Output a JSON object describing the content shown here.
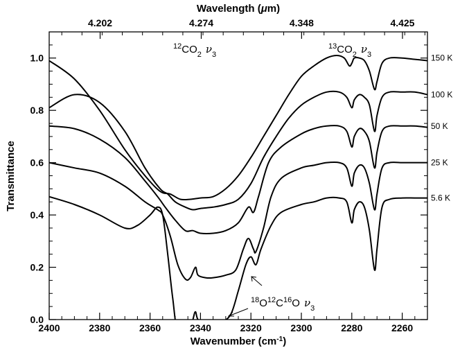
{
  "chart_data": {
    "type": "line",
    "xlabel_parts": [
      "Wavenumber (cm",
      "-1",
      ")"
    ],
    "ylabel": "Transmittance",
    "top_xlabel_parts": [
      "Wavelength (",
      "μ",
      "m)"
    ],
    "xlim": [
      2400,
      2250
    ],
    "ylim": [
      0.0,
      1.1
    ],
    "x_ticks": [
      2400,
      2380,
      2360,
      2340,
      2320,
      2300,
      2280,
      2260
    ],
    "y_ticks": [
      "0.0",
      "0.2",
      "0.4",
      "0.6",
      "0.8",
      "1.0"
    ],
    "top_ticks": [
      {
        "label": "4.202",
        "wavenumber": 2379.8
      },
      {
        "label": "4.274",
        "wavenumber": 2339.7
      },
      {
        "label": "4.348",
        "wavenumber": 2299.9
      },
      {
        "label": "4.425",
        "wavenumber": 2259.9
      }
    ],
    "annotations": {
      "co2_12": {
        "sup": "12",
        "base": "CO",
        "sub": "2",
        "nu": "ν",
        "nu_sub": "3"
      },
      "co2_13": {
        "sup": "13",
        "base": "CO",
        "sub": "2",
        "nu": "ν",
        "nu_sub": "3"
      },
      "iso_18": {
        "parts": [
          "18",
          "O",
          "12",
          "C",
          "16",
          "O"
        ],
        "nu": "ν",
        "nu_sub": "3"
      }
    },
    "series": [
      {
        "name": "150 K",
        "label_y": 1.0,
        "points": [
          [
            2400,
            0.99
          ],
          [
            2390,
            0.92
          ],
          [
            2380,
            0.8
          ],
          [
            2370,
            0.65
          ],
          [
            2362,
            0.55
          ],
          [
            2356,
            0.49
          ],
          [
            2352,
            0.48
          ],
          [
            2348,
            0.46
          ],
          [
            2344,
            0.46
          ],
          [
            2340,
            0.465
          ],
          [
            2335,
            0.47
          ],
          [
            2330,
            0.5
          ],
          [
            2325,
            0.55
          ],
          [
            2320,
            0.62
          ],
          [
            2315,
            0.7
          ],
          [
            2310,
            0.78
          ],
          [
            2305,
            0.86
          ],
          [
            2300,
            0.93
          ],
          [
            2295,
            0.97
          ],
          [
            2290,
            1.0
          ],
          [
            2286,
            1.01
          ],
          [
            2283,
            1.0
          ],
          [
            2281,
            0.97
          ],
          [
            2280,
            0.98
          ],
          [
            2279,
            1.0
          ],
          [
            2277,
            1.0
          ],
          [
            2275,
            0.99
          ],
          [
            2273,
            0.95
          ],
          [
            2271,
            0.88
          ],
          [
            2270,
            0.91
          ],
          [
            2268,
            0.98
          ],
          [
            2265,
            1.0
          ],
          [
            2260,
            1.0
          ],
          [
            2255,
            0.995
          ],
          [
            2250,
            0.99
          ]
        ]
      },
      {
        "name": "100 K",
        "label_y": 0.86,
        "points": [
          [
            2400,
            0.81
          ],
          [
            2390,
            0.86
          ],
          [
            2380,
            0.83
          ],
          [
            2370,
            0.72
          ],
          [
            2362,
            0.58
          ],
          [
            2356,
            0.5
          ],
          [
            2353,
            0.48
          ],
          [
            2350,
            0.45
          ],
          [
            2346,
            0.43
          ],
          [
            2343,
            0.42
          ],
          [
            2340,
            0.425
          ],
          [
            2335,
            0.43
          ],
          [
            2330,
            0.44
          ],
          [
            2325,
            0.46
          ],
          [
            2320,
            0.52
          ],
          [
            2315,
            0.62
          ],
          [
            2310,
            0.7
          ],
          [
            2305,
            0.77
          ],
          [
            2300,
            0.82
          ],
          [
            2295,
            0.85
          ],
          [
            2290,
            0.87
          ],
          [
            2285,
            0.87
          ],
          [
            2282,
            0.85
          ],
          [
            2280,
            0.81
          ],
          [
            2279,
            0.84
          ],
          [
            2277,
            0.86
          ],
          [
            2275,
            0.85
          ],
          [
            2273,
            0.82
          ],
          [
            2271,
            0.72
          ],
          [
            2270,
            0.78
          ],
          [
            2268,
            0.85
          ],
          [
            2265,
            0.87
          ],
          [
            2260,
            0.87
          ],
          [
            2255,
            0.87
          ],
          [
            2250,
            0.86
          ]
        ]
      },
      {
        "name": "50 K",
        "label_y": 0.74,
        "points": [
          [
            2400,
            0.74
          ],
          [
            2390,
            0.73
          ],
          [
            2380,
            0.69
          ],
          [
            2370,
            0.62
          ],
          [
            2362,
            0.53
          ],
          [
            2357,
            0.47
          ],
          [
            2354,
            0.43
          ],
          [
            2350,
            0.38
          ],
          [
            2346,
            0.34
          ],
          [
            2343,
            0.34
          ],
          [
            2340,
            0.33
          ],
          [
            2335,
            0.33
          ],
          [
            2330,
            0.34
          ],
          [
            2325,
            0.37
          ],
          [
            2321,
            0.43
          ],
          [
            2319,
            0.41
          ],
          [
            2317,
            0.47
          ],
          [
            2313,
            0.6
          ],
          [
            2308,
            0.66
          ],
          [
            2300,
            0.71
          ],
          [
            2295,
            0.73
          ],
          [
            2290,
            0.74
          ],
          [
            2285,
            0.74
          ],
          [
            2282,
            0.72
          ],
          [
            2280,
            0.66
          ],
          [
            2279,
            0.7
          ],
          [
            2277,
            0.73
          ],
          [
            2275,
            0.72
          ],
          [
            2273,
            0.68
          ],
          [
            2271,
            0.58
          ],
          [
            2270,
            0.64
          ],
          [
            2268,
            0.72
          ],
          [
            2265,
            0.74
          ],
          [
            2260,
            0.74
          ],
          [
            2255,
            0.74
          ],
          [
            2250,
            0.735
          ]
        ]
      },
      {
        "name": "25 K",
        "label_y": 0.6,
        "points": [
          [
            2400,
            0.6
          ],
          [
            2390,
            0.58
          ],
          [
            2380,
            0.56
          ],
          [
            2370,
            0.51
          ],
          [
            2362,
            0.45
          ],
          [
            2357,
            0.42
          ],
          [
            2355,
            0.4
          ],
          [
            2352,
            0.32
          ],
          [
            2349,
            0.21
          ],
          [
            2346,
            0.155
          ],
          [
            2344,
            0.16
          ],
          [
            2342,
            0.2
          ],
          [
            2341,
            0.17
          ],
          [
            2338,
            0.16
          ],
          [
            2335,
            0.16
          ],
          [
            2330,
            0.17
          ],
          [
            2326,
            0.19
          ],
          [
            2323,
            0.27
          ],
          [
            2321,
            0.31
          ],
          [
            2319,
            0.27
          ],
          [
            2318,
            0.26
          ],
          [
            2315,
            0.35
          ],
          [
            2312,
            0.47
          ],
          [
            2308,
            0.54
          ],
          [
            2300,
            0.58
          ],
          [
            2295,
            0.59
          ],
          [
            2290,
            0.6
          ],
          [
            2285,
            0.6
          ],
          [
            2282,
            0.58
          ],
          [
            2280,
            0.51
          ],
          [
            2279,
            0.56
          ],
          [
            2277,
            0.59
          ],
          [
            2275,
            0.58
          ],
          [
            2273,
            0.52
          ],
          [
            2271,
            0.42
          ],
          [
            2270,
            0.48
          ],
          [
            2268,
            0.58
          ],
          [
            2265,
            0.6
          ],
          [
            2260,
            0.6
          ],
          [
            2255,
            0.6
          ],
          [
            2250,
            0.6
          ]
        ]
      },
      {
        "name": "5.6 K",
        "label_y": 0.465,
        "points": [
          [
            2400,
            0.47
          ],
          [
            2390,
            0.44
          ],
          [
            2380,
            0.4
          ],
          [
            2370,
            0.35
          ],
          [
            2365,
            0.36
          ],
          [
            2360,
            0.4
          ],
          [
            2357,
            0.43
          ],
          [
            2355,
            0.4
          ],
          [
            2353,
            0.25
          ],
          [
            2351,
            0.08
          ],
          [
            2349,
            -0.05
          ],
          [
            2345,
            -0.08
          ],
          [
            2343,
            0.0
          ],
          [
            2342,
            0.03
          ],
          [
            2341,
            0.0
          ],
          [
            2338,
            -0.02
          ],
          [
            2332,
            -0.01
          ],
          [
            2328,
            0.02
          ],
          [
            2325,
            0.11
          ],
          [
            2322,
            0.21
          ],
          [
            2320,
            0.24
          ],
          [
            2318,
            0.21
          ],
          [
            2316,
            0.27
          ],
          [
            2312,
            0.36
          ],
          [
            2308,
            0.41
          ],
          [
            2300,
            0.44
          ],
          [
            2295,
            0.45
          ],
          [
            2290,
            0.465
          ],
          [
            2285,
            0.465
          ],
          [
            2282,
            0.45
          ],
          [
            2280,
            0.37
          ],
          [
            2279,
            0.42
          ],
          [
            2277,
            0.45
          ],
          [
            2275,
            0.43
          ],
          [
            2273,
            0.34
          ],
          [
            2271,
            0.19
          ],
          [
            2270,
            0.27
          ],
          [
            2268,
            0.43
          ],
          [
            2265,
            0.46
          ],
          [
            2260,
            0.465
          ],
          [
            2255,
            0.465
          ],
          [
            2250,
            0.465
          ]
        ]
      }
    ]
  }
}
